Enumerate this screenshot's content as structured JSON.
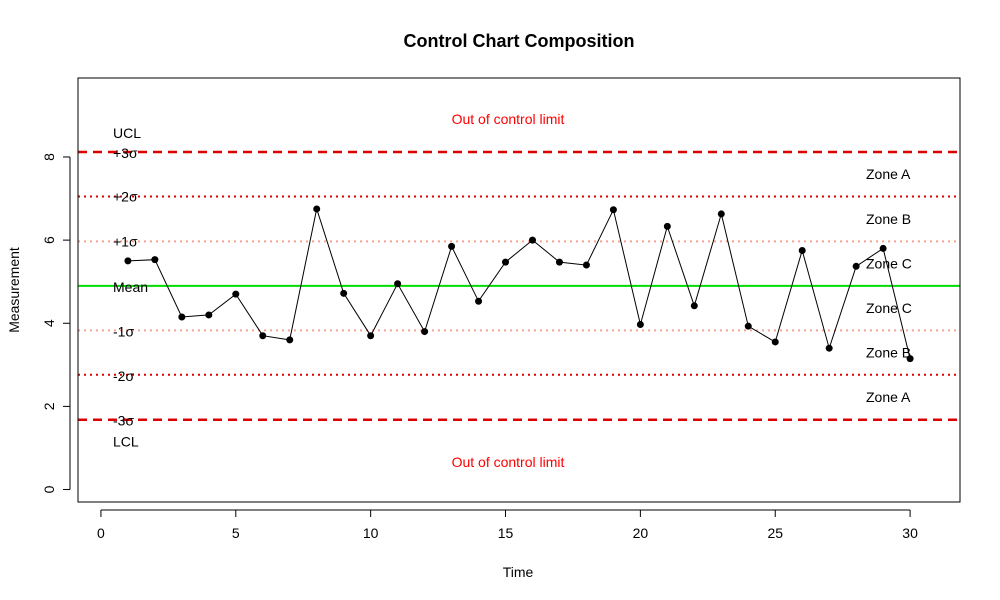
{
  "chart_data": {
    "type": "line",
    "title": "Control Chart Composition",
    "xlabel": "Time",
    "ylabel": "Measurement",
    "xlim": [
      -0.85,
      31.85
    ],
    "ylim": [
      -0.3,
      9.9
    ],
    "x_ticks": [
      "0",
      "5",
      "10",
      "15",
      "20",
      "25",
      "30"
    ],
    "y_ticks": [
      "0",
      "2",
      "4",
      "6",
      "8"
    ],
    "series": [
      {
        "x": [
          1,
          2,
          3,
          4,
          5,
          6,
          7,
          8,
          9,
          10,
          11,
          12,
          13,
          14,
          15,
          16,
          17,
          18,
          19,
          20,
          21,
          22,
          23,
          24,
          25,
          26,
          27,
          28,
          29,
          30
        ],
        "values": [
          5.5,
          5.53,
          4.15,
          4.2,
          4.7,
          3.7,
          3.6,
          6.75,
          4.72,
          3.7,
          4.95,
          3.8,
          5.85,
          4.53,
          5.47,
          6.0,
          5.47,
          5.4,
          6.73,
          3.97,
          6.33,
          4.42,
          6.63,
          3.93,
          3.55,
          5.75,
          3.4,
          5.37,
          5.8,
          3.15
        ],
        "color": "#000000"
      }
    ],
    "reference_lines": {
      "mean": 4.9,
      "plus_1_sigma": 5.97,
      "plus_2_sigma": 7.05,
      "ucl": 8.12,
      "minus_1_sigma": 3.83,
      "minus_2_sigma": 2.76,
      "lcl": 1.68
    },
    "colors": {
      "mean": "#00dd00",
      "limits": "#dd0000",
      "two_sigma": "#dd0000",
      "one_sigma": "#f4a390",
      "out_of_control": "#ff0000",
      "points": "#000000"
    },
    "annotations": {
      "ucl": "UCL",
      "plus_3_sigma": "+3σ",
      "plus_2_sigma": "+2σ",
      "plus_1_sigma": "+1σ",
      "mean": "Mean",
      "minus_1_sigma": "-1σ",
      "minus_2_sigma": "-2σ",
      "minus_3_sigma": "-3σ",
      "lcl": "LCL",
      "out_of_control_top": "Out of control limit",
      "out_of_control_bottom": "Out of control limit",
      "zones": [
        "Zone A",
        "Zone B",
        "Zone C",
        "Zone C",
        "Zone B",
        "Zone A"
      ]
    },
    "grid": false,
    "legend": "none"
  }
}
